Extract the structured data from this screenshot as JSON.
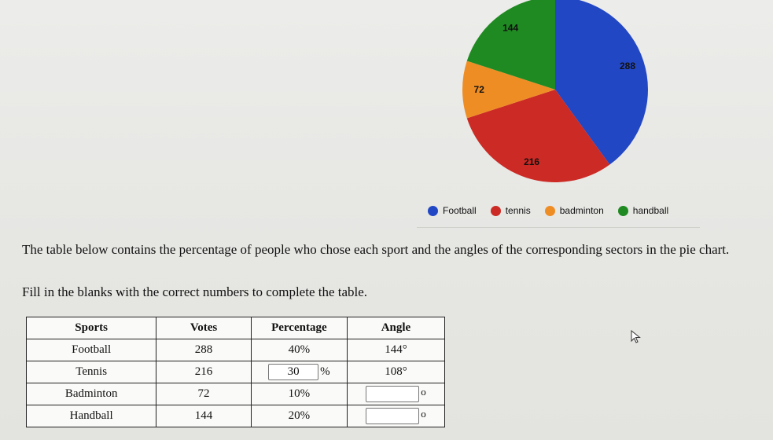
{
  "chart_data": {
    "type": "pie",
    "start_angle_deg": 0,
    "direction": "clockwise",
    "slices": [
      {
        "label": "Football",
        "value": 288,
        "color": "#2247c5"
      },
      {
        "label": "tennis",
        "value": 216,
        "color": "#cc2a24"
      },
      {
        "label": "badminton",
        "value": 72,
        "color": "#ef8d25"
      },
      {
        "label": "handball",
        "value": 144,
        "color": "#1f8a22"
      }
    ],
    "data_labels": [
      "288",
      "216",
      "72",
      "144"
    ],
    "legend_placement": "bottom"
  },
  "instructions": {
    "line1": "The table below contains the percentage of people who chose each sport and the angles of the corresponding sectors in the pie chart.",
    "line2": "Fill in the blanks with the correct numbers to complete the table."
  },
  "table": {
    "headers": {
      "sport": "Sports",
      "votes": "Votes",
      "percentage": "Percentage",
      "angle": "Angle"
    },
    "rows": [
      {
        "sport": "Football",
        "votes": "288",
        "percentage": "40%",
        "angle": "144°"
      },
      {
        "sport": "Tennis",
        "votes": "216",
        "percentage_input": "30",
        "percentage_suffix": "%",
        "angle": "108°"
      },
      {
        "sport": "Badminton",
        "votes": "72",
        "percentage": "10%",
        "angle_input": "",
        "angle_suffix": "o"
      },
      {
        "sport": "Handball",
        "votes": "144",
        "percentage": "20%",
        "angle_input": "",
        "angle_suffix": "o"
      }
    ]
  },
  "icons": {
    "cursor": "mouse-pointer-icon"
  }
}
